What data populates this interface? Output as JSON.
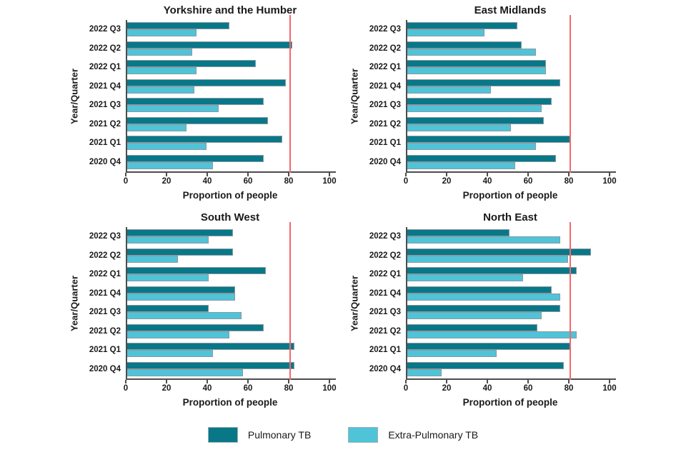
{
  "page": {
    "background": "#ffffff"
  },
  "colors": {
    "pulmonary": "#087889",
    "extra_pulmonary": "#4fc4d9",
    "refline": "#f4686b",
    "axis": "#4d4d4d",
    "bar_border": "#8d989e"
  },
  "legend": {
    "items": [
      {
        "label": "Pulmonary TB",
        "color": "#087889"
      },
      {
        "label": "Extra-Pulmonary TB",
        "color": "#4fc4d9"
      }
    ]
  },
  "chart_data": [
    {
      "type": "bar",
      "orientation": "horizontal",
      "title": "Yorkshire and the Humber",
      "xlabel": "Proportion of people",
      "ylabel": "Year/Quarter",
      "xlim": [
        0,
        100
      ],
      "xticks": [
        0,
        20,
        40,
        60,
        80,
        100
      ],
      "refline_x": 80,
      "grid": false,
      "categories": [
        "2022 Q3",
        "2022 Q2",
        "2022 Q1",
        "2021 Q4",
        "2021 Q3",
        "2021 Q2",
        "2021 Q1",
        "2020 Q4"
      ],
      "series": [
        {
          "name": "Pulmonary TB",
          "values": [
            50,
            81,
            63,
            78,
            67,
            69,
            76,
            67
          ]
        },
        {
          "name": "Extra-Pulmonary TB",
          "values": [
            34,
            32,
            34,
            33,
            45,
            29,
            39,
            42
          ]
        }
      ]
    },
    {
      "type": "bar",
      "orientation": "horizontal",
      "title": "East Midlands",
      "xlabel": "Proportion of people",
      "ylabel": "Year/Quarter",
      "xlim": [
        0,
        100
      ],
      "xticks": [
        0,
        20,
        40,
        60,
        80,
        100
      ],
      "refline_x": 80,
      "grid": false,
      "categories": [
        "2022 Q3",
        "2022 Q2",
        "2022 Q1",
        "2021 Q4",
        "2021 Q3",
        "2021 Q2",
        "2021 Q1",
        "2020 Q4"
      ],
      "series": [
        {
          "name": "Pulmonary TB",
          "values": [
            54,
            56,
            68,
            75,
            71,
            67,
            80,
            73
          ]
        },
        {
          "name": "Extra-Pulmonary TB",
          "values": [
            38,
            63,
            68,
            41,
            66,
            51,
            63,
            53
          ]
        }
      ]
    },
    {
      "type": "bar",
      "orientation": "horizontal",
      "title": "South West",
      "xlabel": "Proportion of people",
      "ylabel": "Year/Quarter",
      "xlim": [
        0,
        100
      ],
      "xticks": [
        0,
        20,
        40,
        60,
        80,
        100
      ],
      "refline_x": 80,
      "grid": false,
      "categories": [
        "2022 Q3",
        "2022 Q2",
        "2022 Q1",
        "2021 Q4",
        "2021 Q3",
        "2021 Q2",
        "2021 Q1",
        "2020 Q4"
      ],
      "series": [
        {
          "name": "Pulmonary TB",
          "values": [
            52,
            52,
            68,
            53,
            40,
            67,
            82,
            82
          ]
        },
        {
          "name": "Extra-Pulmonary TB",
          "values": [
            40,
            25,
            40,
            53,
            56,
            50,
            42,
            57
          ]
        }
      ]
    },
    {
      "type": "bar",
      "orientation": "horizontal",
      "title": "North East",
      "xlabel": "Proportion of people",
      "ylabel": "Year/Quarter",
      "xlim": [
        0,
        100
      ],
      "xticks": [
        0,
        20,
        40,
        60,
        80,
        100
      ],
      "refline_x": 80,
      "grid": false,
      "categories": [
        "2022 Q3",
        "2022 Q2",
        "2022 Q1",
        "2021 Q4",
        "2021 Q3",
        "2021 Q2",
        "2021 Q1",
        "2020 Q4"
      ],
      "series": [
        {
          "name": "Pulmonary TB",
          "values": [
            50,
            90,
            83,
            71,
            75,
            64,
            80,
            77
          ]
        },
        {
          "name": "Extra-Pulmonary TB",
          "values": [
            75,
            79,
            57,
            75,
            66,
            83,
            44,
            17
          ]
        }
      ]
    }
  ]
}
